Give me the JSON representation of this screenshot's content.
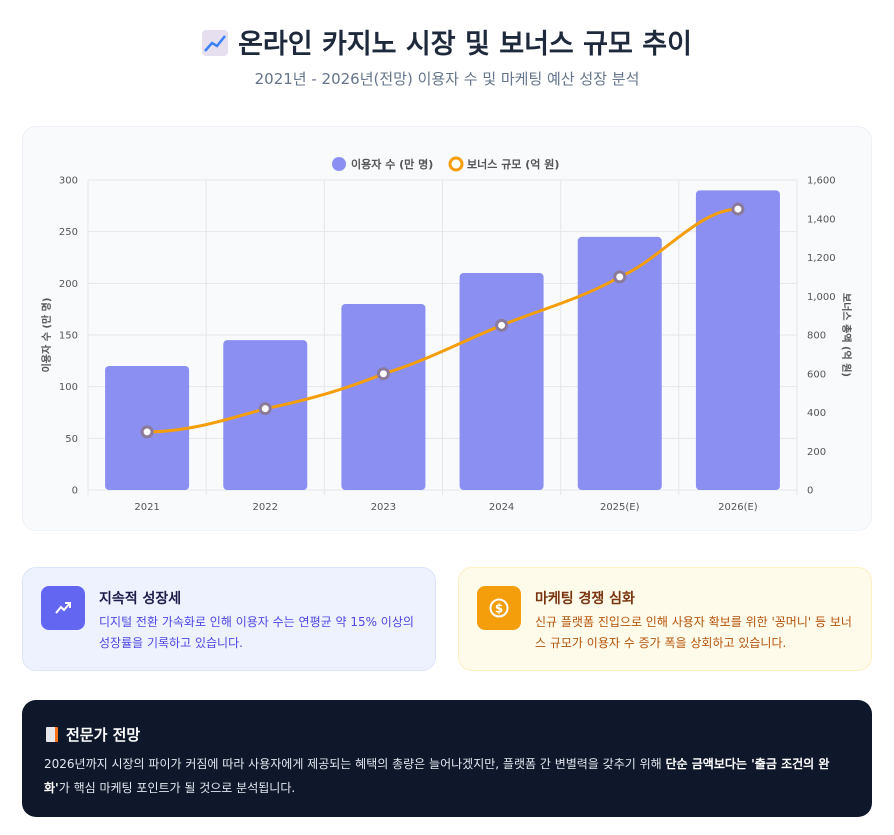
{
  "header": {
    "title": "온라인 카지노 시장 및 보너스 규모 추이",
    "subtitle": "2021년 - 2026년(전망) 이용자 수 및 마케팅 예산 성장 분석",
    "icon": "chart-increasing-icon"
  },
  "chart_data": {
    "type": "bar+line",
    "categories": [
      "2021",
      "2022",
      "2023",
      "2024",
      "2025(E)",
      "2026(E)"
    ],
    "series": [
      {
        "name": "이용자 수 (만 명)",
        "type": "bar",
        "axis": "left",
        "color": "#8b8ff2",
        "values": [
          120,
          145,
          180,
          210,
          245,
          290
        ]
      },
      {
        "name": "보너스 규모 (억 원)",
        "type": "line",
        "axis": "right",
        "color": "#f59e0b",
        "values": [
          300,
          420,
          600,
          850,
          1100,
          1450
        ]
      }
    ],
    "ylabel": "이용자 수 (만 명)",
    "ylabel_right": "보너스 총액 (억 원)",
    "ylim": [
      0,
      300
    ],
    "ylim_right": [
      0,
      1600
    ],
    "yticks": [
      "0",
      "50",
      "100",
      "150",
      "200",
      "250",
      "300"
    ],
    "yticks_right": [
      "0",
      "200",
      "400",
      "600",
      "800",
      "1,000",
      "1,200",
      "1,400",
      "1,600"
    ],
    "grid": true,
    "legend": "top"
  },
  "insights": [
    {
      "title": "지속적 성장세",
      "text": "디지털 전환 가속화로 인해 이용자 수는 연평균 약 15% 이상의 성장률을 기록하고 있습니다.",
      "icon": "trending-up-icon",
      "color": "#6366f1"
    },
    {
      "title": "마케팅 경쟁 심화",
      "text": "신규 플랫폼 진입으로 인해 사용자 확보를 위한 '꽁머니' 등 보너스 규모가 이용자 수 증가 폭을 상회하고 있습니다.",
      "icon": "dollar-coin-icon",
      "color": "#f59e0b"
    }
  ],
  "expert": {
    "title": "전문가 전망",
    "icon": "memo-icon",
    "text_1": "2026년까지 시장의 파이가 커짐에 따라 사용자에게 제공되는 혜택의 총량은 늘어나겠지만, 플랫폼 간 변별력을 갖추기 위해 ",
    "bold": "단순 금액보다는 '출금 조건의 완화'",
    "text_2": "가 핵심 마케팅 포인트가 될 것으로 분석됩니다."
  }
}
